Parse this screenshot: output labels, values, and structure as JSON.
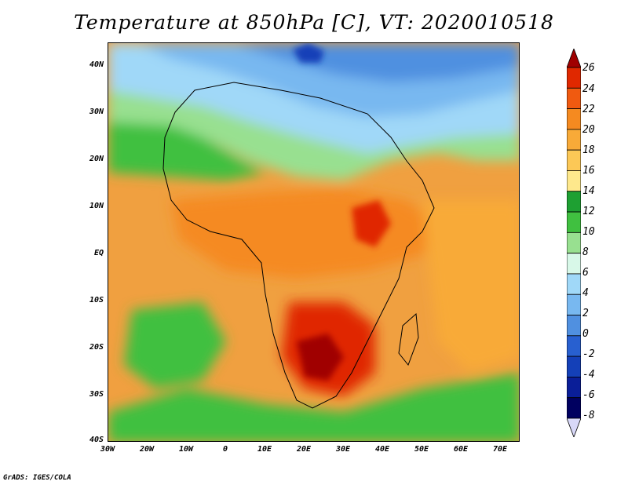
{
  "title": "Temperature at 850hPa [C], VT: 2020010518",
  "credit": "GrADS: IGES/COLA",
  "map": {
    "projection": "lat-lon",
    "lon_range": [
      -30,
      75
    ],
    "lat_range": [
      -40,
      45
    ],
    "variable": "Temperature at 850hPa",
    "units": "C",
    "valid_time": "2020010518"
  },
  "y_ticks": [
    "40N",
    "30N",
    "20N",
    "10N",
    "EQ",
    "10S",
    "20S",
    "30S",
    "40S"
  ],
  "x_ticks": [
    "30W",
    "20W",
    "10W",
    "0",
    "10E",
    "20E",
    "30E",
    "40E",
    "50E",
    "60E",
    "70E"
  ],
  "colorbar": {
    "labels": [
      "26",
      "24",
      "22",
      "20",
      "18",
      "16",
      "14",
      "12",
      "10",
      "8",
      "6",
      "4",
      "2",
      "0",
      "-2",
      "-4",
      "-6",
      "-8"
    ],
    "colors": [
      "#a00000",
      "#e02800",
      "#f05a10",
      "#f58a20",
      "#f8aa38",
      "#fcc856",
      "#fee88c",
      "#1ea032",
      "#40c040",
      "#98e090",
      "#d8f8e8",
      "#a0d8f8",
      "#78b8f0",
      "#5090e0",
      "#2860d0",
      "#1440b8",
      "#0a1e98",
      "#000060",
      "#d8d8f8"
    ]
  }
}
